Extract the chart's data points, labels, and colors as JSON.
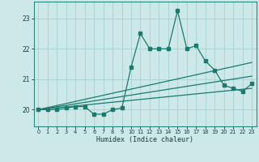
{
  "title": "",
  "xlabel": "Humidex (Indice chaleur)",
  "bg_color": "#cce8e8",
  "line_color": "#1a7a6e",
  "grid_color": "#a8d0d0",
  "xlim": [
    -0.5,
    23.5
  ],
  "ylim": [
    19.45,
    23.55
  ],
  "yticks": [
    20,
    21,
    22,
    23
  ],
  "xticks": [
    0,
    1,
    2,
    3,
    4,
    5,
    6,
    7,
    8,
    9,
    10,
    11,
    12,
    13,
    14,
    15,
    16,
    17,
    18,
    19,
    20,
    21,
    22,
    23
  ],
  "series1_x": [
    0,
    1,
    2,
    3,
    4,
    5,
    6,
    7,
    8,
    9,
    10,
    11,
    12,
    13,
    14,
    15,
    16,
    17,
    18,
    19,
    20,
    21,
    22,
    23
  ],
  "series1_y": [
    20.0,
    20.0,
    20.0,
    20.05,
    20.1,
    20.1,
    19.85,
    19.85,
    20.0,
    20.05,
    21.4,
    22.5,
    22.0,
    22.0,
    22.0,
    23.25,
    22.0,
    22.1,
    21.6,
    21.3,
    20.8,
    20.7,
    20.6,
    20.85
  ],
  "trend1_x": [
    0,
    23
  ],
  "trend1_y": [
    20.0,
    21.55
  ],
  "trend2_x": [
    0,
    23
  ],
  "trend2_y": [
    20.0,
    21.1
  ],
  "trend3_x": [
    0,
    23
  ],
  "trend3_y": [
    20.0,
    20.7
  ]
}
